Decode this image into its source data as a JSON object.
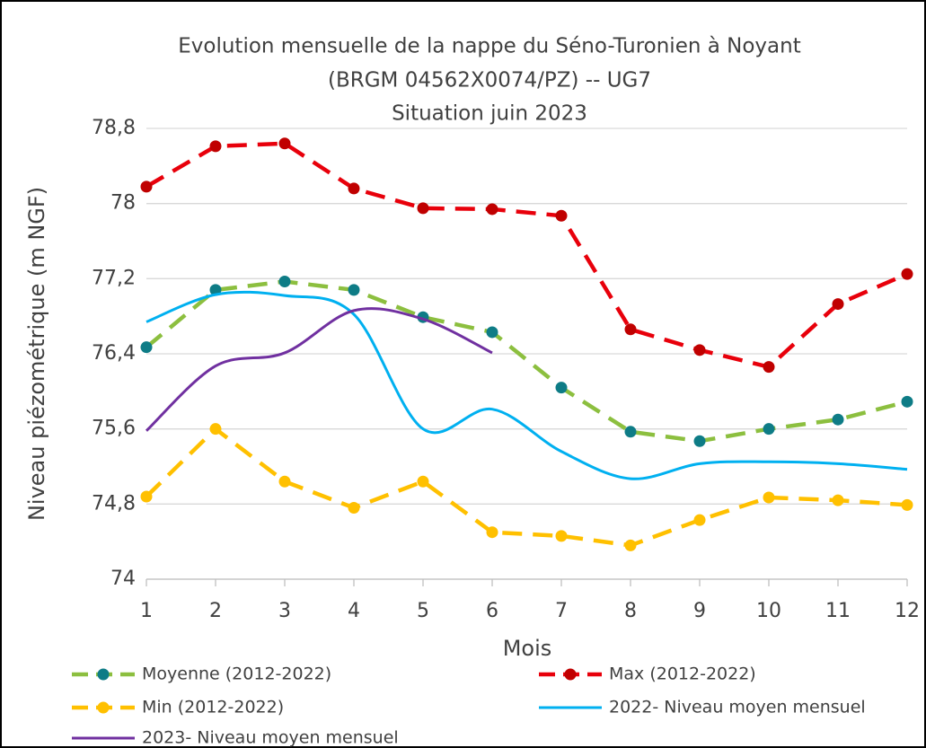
{
  "chart_data": {
    "type": "line",
    "title": [
      "Evolution mensuelle de la nappe du Séno-Turonien à Noyant",
      "(BRGM 04562X0074/PZ) -- UG7",
      "Situation juin 2023"
    ],
    "x_label": "Mois",
    "y_label": "Niveau piézométrique (m NGF)",
    "x": [
      1,
      2,
      3,
      4,
      5,
      6,
      7,
      8,
      9,
      10,
      11,
      12
    ],
    "xlim": [
      1,
      12
    ],
    "xticks": [
      1,
      2,
      3,
      4,
      5,
      6,
      7,
      8,
      9,
      10,
      11,
      12
    ],
    "ylim": [
      74,
      78.8
    ],
    "yticks": [
      74,
      {
        "value": 74.8,
        "label": "74,8"
      },
      {
        "value": 75.6,
        "label": "75,6"
      },
      {
        "value": 76.4,
        "label": "76,4"
      },
      {
        "value": 77.2,
        "label": "77,2"
      },
      78,
      {
        "value": 78.8,
        "label": "78,8"
      }
    ],
    "grid": true,
    "series": [
      {
        "name": "Moyenne (2012-2022)",
        "color": "#8cbf3f",
        "marker_color": "#0e7c86",
        "style": "dashed",
        "markers": true,
        "values": [
          76.47,
          77.08,
          77.17,
          77.08,
          76.79,
          76.63,
          76.04,
          75.57,
          75.47,
          75.6,
          75.7,
          75.89
        ]
      },
      {
        "name": "Max (2012-2022)",
        "color": "#e8000b",
        "marker_color": "#c00000",
        "style": "dashed",
        "markers": true,
        "values": [
          78.18,
          78.61,
          78.64,
          78.16,
          77.95,
          77.94,
          77.87,
          76.66,
          76.44,
          76.26,
          76.93,
          77.25
        ]
      },
      {
        "name": "Min (2012-2022)",
        "color": "#ffc000",
        "marker_color": "#ffc000",
        "style": "dashed",
        "markers": true,
        "values": [
          74.88,
          75.6,
          75.04,
          74.76,
          75.04,
          74.5,
          74.46,
          74.36,
          74.63,
          74.87,
          74.84,
          74.79
        ]
      },
      {
        "name": "2022- Niveau moyen mensuel",
        "color": "#00b0f0",
        "style": "solid",
        "markers": false,
        "values": [
          76.74,
          77.03,
          77.02,
          76.82,
          75.6,
          75.81,
          75.36,
          75.07,
          75.23,
          75.25,
          75.23,
          75.17
        ]
      },
      {
        "name": "2023- Niveau moyen mensuel",
        "color": "#7030a0",
        "style": "solid",
        "markers": false,
        "values": [
          75.58,
          76.27,
          76.41,
          76.86,
          76.77,
          76.41,
          null,
          null,
          null,
          null,
          null,
          null
        ]
      }
    ]
  }
}
